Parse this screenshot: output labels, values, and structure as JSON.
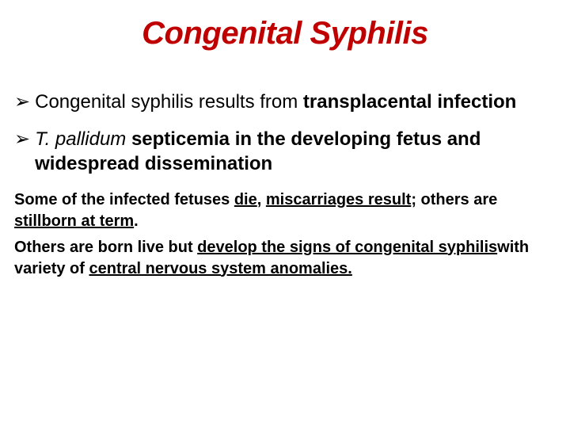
{
  "title": {
    "text": "Congenital Syphilis",
    "color": "#c00000",
    "fontsize": 40
  },
  "bullets": [
    {
      "marker": "➢",
      "prefix": "Congenital syphilis results from ",
      "bold1": "transplacental infection"
    },
    {
      "marker": "➢",
      "italic": "T. pallidum ",
      "bold1": " septicemia in the developing fetus and widespread dissemination"
    }
  ],
  "para1": {
    "t1": "Some of the infected fetuses ",
    "u1": "die",
    "t2": ", ",
    "u2": "miscarriages result",
    "t3": "; others are ",
    "u3": "stillborn at term",
    "t4": "."
  },
  "para2": {
    "t1": " Others are born live but ",
    "u1": "develop the signs of congenital syphilis",
    "t2": "with variety of ",
    "u2": "central nervous system anomalies."
  },
  "colors": {
    "background": "#ffffff",
    "text": "#000000",
    "title": "#c00000"
  }
}
